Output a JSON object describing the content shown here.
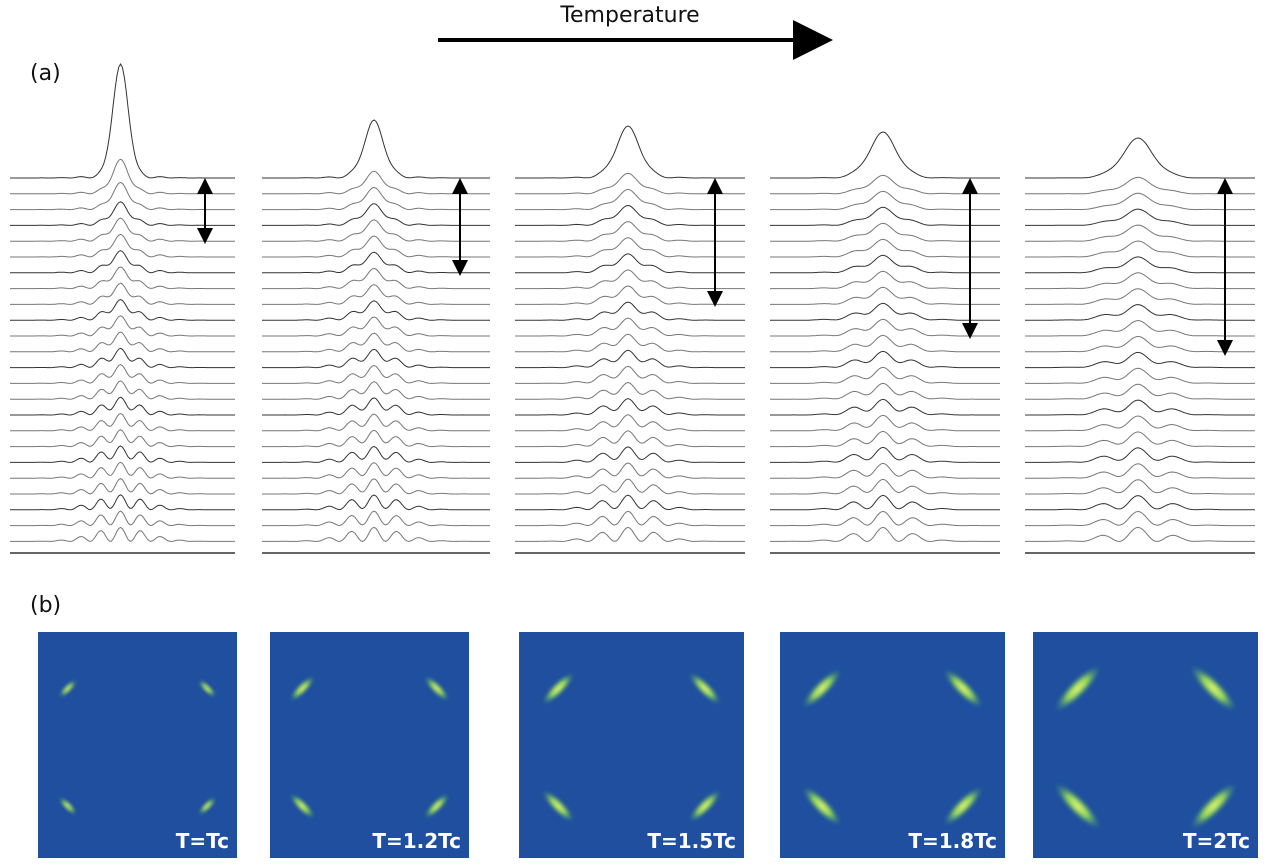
{
  "figure": {
    "arrow_label": "Temperature",
    "panel_a_label": "(a)",
    "panel_b_label": "(b)",
    "maps": [
      {
        "label": "T=Tc"
      },
      {
        "label": "T=1.2Tc"
      },
      {
        "label": "T=1.5Tc"
      },
      {
        "label": "T=1.8Tc"
      },
      {
        "label": "T=2Tc"
      }
    ]
  }
}
